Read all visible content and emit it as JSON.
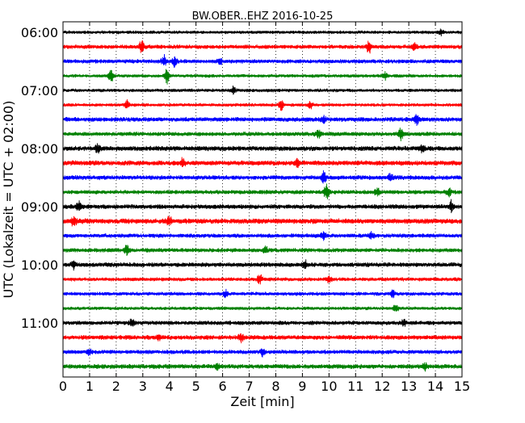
{
  "chart_data": {
    "type": "line",
    "subtype": "dayplot-seismogram",
    "title": "BW.OBER..EHZ 2016-10-25",
    "xlabel": "Zeit  [min]",
    "ylabel": "UTC (Lokalzeit = UTC + 02:00)",
    "xlim": [
      0,
      15
    ],
    "x_ticks": [
      "0",
      "1",
      "2",
      "3",
      "4",
      "5",
      "6",
      "7",
      "8",
      "9",
      "10",
      "11",
      "12",
      "13",
      "14",
      "15"
    ],
    "y_tick_labels": [
      "06:00",
      "07:00",
      "08:00",
      "09:00",
      "10:00",
      "11:00"
    ],
    "grid": "vertical-dotted",
    "legend": "none",
    "trace_interval_min": 15,
    "trace_colors": [
      "#000000",
      "#ff0000",
      "#0000ff",
      "#008000"
    ],
    "traces": [
      {
        "start": "06:00",
        "color": "#000000",
        "amplitude": 0.45,
        "events": [
          [
            14.2,
            0.8
          ]
        ]
      },
      {
        "start": "06:15",
        "color": "#ff0000",
        "amplitude": 0.55,
        "events": [
          [
            2.95,
            1.8
          ],
          [
            11.5,
            1.6
          ],
          [
            13.2,
            0.8
          ]
        ]
      },
      {
        "start": "06:30",
        "color": "#0000ff",
        "amplitude": 0.55,
        "events": [
          [
            3.8,
            1.5
          ],
          [
            4.2,
            1.4
          ],
          [
            5.9,
            0.8
          ]
        ]
      },
      {
        "start": "06:45",
        "color": "#008000",
        "amplitude": 0.45,
        "events": [
          [
            1.8,
            1.8
          ],
          [
            3.9,
            2.0
          ],
          [
            12.1,
            0.8
          ]
        ]
      },
      {
        "start": "07:00",
        "color": "#000000",
        "amplitude": 0.45,
        "events": [
          [
            6.4,
            0.8
          ]
        ]
      },
      {
        "start": "07:15",
        "color": "#ff0000",
        "amplitude": 0.45,
        "events": [
          [
            2.4,
            1.0
          ],
          [
            8.2,
            1.1
          ],
          [
            9.3,
            0.9
          ]
        ]
      },
      {
        "start": "07:30",
        "color": "#0000ff",
        "amplitude": 0.6,
        "events": [
          [
            13.3,
            1.4
          ],
          [
            9.8,
            0.9
          ]
        ]
      },
      {
        "start": "07:45",
        "color": "#008000",
        "amplitude": 0.55,
        "events": [
          [
            9.6,
            1.1
          ],
          [
            12.7,
            1.3
          ]
        ]
      },
      {
        "start": "08:00",
        "color": "#000000",
        "amplitude": 0.65,
        "events": [
          [
            1.3,
            1.2
          ],
          [
            13.5,
            1.0
          ]
        ]
      },
      {
        "start": "08:15",
        "color": "#ff0000",
        "amplitude": 0.65,
        "events": [
          [
            4.5,
            1.0
          ],
          [
            8.8,
            0.9
          ]
        ]
      },
      {
        "start": "08:30",
        "color": "#0000ff",
        "amplitude": 0.6,
        "events": [
          [
            9.8,
            1.4
          ],
          [
            12.3,
            1.0
          ]
        ]
      },
      {
        "start": "08:45",
        "color": "#008000",
        "amplitude": 0.55,
        "events": [
          [
            9.9,
            1.9
          ],
          [
            11.8,
            1.1
          ],
          [
            14.5,
            1.0
          ]
        ]
      },
      {
        "start": "09:00",
        "color": "#000000",
        "amplitude": 0.6,
        "events": [
          [
            0.6,
            1.3
          ],
          [
            14.6,
            1.3
          ]
        ]
      },
      {
        "start": "09:15",
        "color": "#ff0000",
        "amplitude": 0.7,
        "events": [
          [
            0.4,
            1.2
          ],
          [
            4.0,
            1.0
          ]
        ]
      },
      {
        "start": "09:30",
        "color": "#0000ff",
        "amplitude": 0.55,
        "events": [
          [
            9.8,
            1.0
          ],
          [
            11.6,
            0.9
          ]
        ]
      },
      {
        "start": "09:45",
        "color": "#008000",
        "amplitude": 0.55,
        "events": [
          [
            2.4,
            1.3
          ],
          [
            7.6,
            1.0
          ]
        ]
      },
      {
        "start": "10:00",
        "color": "#000000",
        "amplitude": 0.6,
        "events": [
          [
            0.4,
            1.0
          ],
          [
            9.1,
            1.0
          ]
        ]
      },
      {
        "start": "10:15",
        "color": "#ff0000",
        "amplitude": 0.5,
        "events": [
          [
            7.4,
            1.1
          ],
          [
            10.0,
            1.0
          ]
        ]
      },
      {
        "start": "10:30",
        "color": "#0000ff",
        "amplitude": 0.5,
        "events": [
          [
            6.1,
            1.0
          ],
          [
            12.4,
            0.9
          ]
        ]
      },
      {
        "start": "10:45",
        "color": "#008000",
        "amplitude": 0.45,
        "events": [
          [
            12.5,
            0.9
          ]
        ]
      },
      {
        "start": "11:00",
        "color": "#000000",
        "amplitude": 0.55,
        "events": [
          [
            2.6,
            1.0
          ],
          [
            12.8,
            0.9
          ]
        ]
      },
      {
        "start": "11:15",
        "color": "#ff0000",
        "amplitude": 0.6,
        "events": [
          [
            6.7,
            1.0
          ],
          [
            3.6,
            0.9
          ]
        ]
      },
      {
        "start": "11:30",
        "color": "#0000ff",
        "amplitude": 0.55,
        "events": [
          [
            7.5,
            0.9
          ],
          [
            1.0,
            0.8
          ]
        ]
      },
      {
        "start": "11:45",
        "color": "#008000",
        "amplitude": 0.6,
        "events": [
          [
            5.8,
            0.9
          ],
          [
            13.6,
            0.9
          ]
        ]
      }
    ]
  }
}
